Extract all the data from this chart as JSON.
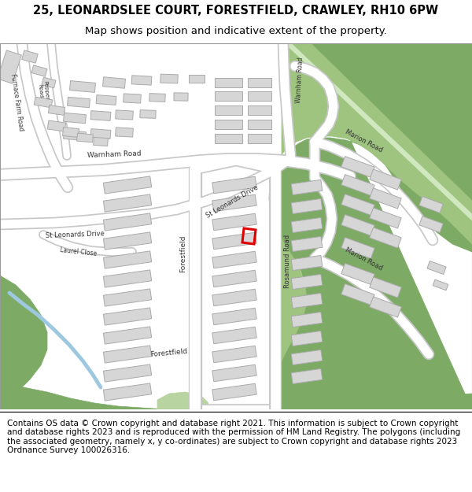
{
  "title": "25, LEONARDSLEE COURT, FORESTFIELD, CRAWLEY, RH10 6PW",
  "subtitle": "Map shows position and indicative extent of the property.",
  "footer": "Contains OS data © Crown copyright and database right 2021. This information is subject to Crown copyright and database rights 2023 and is reproduced with the permission of HM Land Registry. The polygons (including the associated geometry, namely x, y co-ordinates) are subject to Crown copyright and database rights 2023 Ordnance Survey 100026316.",
  "bg_map_color": "#f0f0f0",
  "road_color": "#ffffff",
  "road_outline_color": "#c8c8c8",
  "building_color": "#d6d6d6",
  "building_outline_color": "#aaaaaa",
  "green_dark": "#7dab65",
  "green_med": "#9ec47f",
  "green_light": "#b8d4a0",
  "water_color": "#9ec8e0",
  "highlight_color": "#e00000",
  "title_fontsize": 10.5,
  "subtitle_fontsize": 9.5,
  "footer_fontsize": 7.5
}
